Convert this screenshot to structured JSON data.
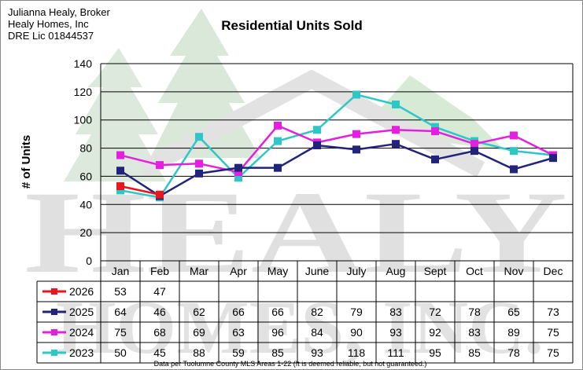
{
  "agent": {
    "line1": "Julianna Healy, Broker",
    "line2": "Healy Homes, Inc",
    "line3": "DRE Lic 01844537"
  },
  "watermark": {
    "word1": "HEALY",
    "word2": "HOMES, INC."
  },
  "footnote": "Data per Tuolumne County MLS Areas 1-22 (It is deemed reliable, but not guaranteed.)",
  "chart_data": {
    "type": "line",
    "title": "Residential Units Sold",
    "xlabel": "",
    "ylabel": "# of Units",
    "ylim": [
      0,
      140
    ],
    "yticks": [
      0,
      20,
      40,
      60,
      80,
      100,
      120,
      140
    ],
    "grid": true,
    "legend": "left, in data table",
    "categories": [
      "Jan",
      "Feb",
      "Mar",
      "Apr",
      "May",
      "June",
      "July",
      "Aug",
      "Sept",
      "Oct",
      "Nov",
      "Dec"
    ],
    "series": [
      {
        "name": "2026",
        "color": "#e8161e",
        "values": [
          53,
          47,
          null,
          null,
          null,
          null,
          null,
          null,
          null,
          null,
          null,
          null
        ]
      },
      {
        "name": "2025",
        "color": "#22237a",
        "values": [
          64,
          46,
          62,
          66,
          66,
          82,
          79,
          83,
          72,
          78,
          65,
          73
        ]
      },
      {
        "name": "2024",
        "color": "#e41fe0",
        "values": [
          75,
          68,
          69,
          63,
          96,
          84,
          90,
          93,
          92,
          83,
          89,
          75
        ]
      },
      {
        "name": "2023",
        "color": "#2ec6c6",
        "values": [
          50,
          45,
          88,
          59,
          85,
          93,
          118,
          111,
          95,
          85,
          78,
          75
        ]
      }
    ]
  }
}
